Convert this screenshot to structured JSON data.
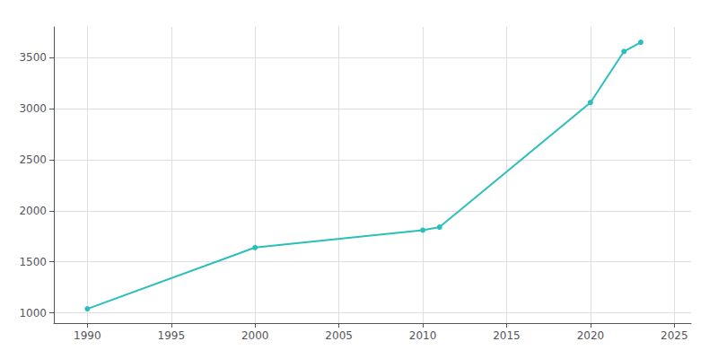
{
  "chart_data": {
    "type": "line",
    "x": [
      1990,
      2000,
      2010,
      2011,
      2020,
      2022,
      2023
    ],
    "values": [
      1040,
      1640,
      1810,
      1840,
      3060,
      3560,
      3650
    ],
    "color": "#2bbfbb",
    "marker": "circle",
    "xlim": [
      1988,
      2026
    ],
    "ylim": [
      900,
      3800
    ],
    "xticks": [
      1990,
      1995,
      2000,
      2005,
      2010,
      2015,
      2020,
      2025
    ],
    "yticks": [
      1000,
      1500,
      2000,
      2500,
      3000,
      3500
    ],
    "grid": true
  }
}
